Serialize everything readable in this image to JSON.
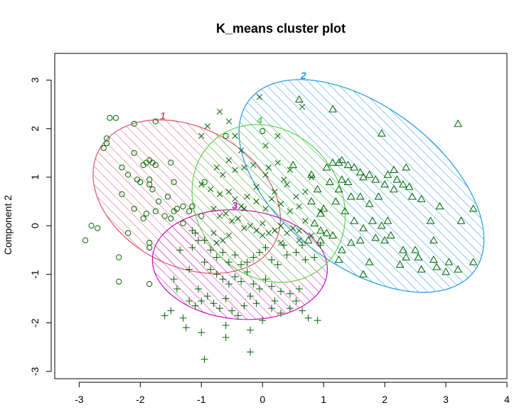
{
  "chart_data": {
    "type": "scatter",
    "title": "K_means cluster plot",
    "xlabel": "",
    "ylabel": "Component 2",
    "xlim": [
      -3.4,
      4.0
    ],
    "ylim": [
      -3.15,
      3.55
    ],
    "x_ticks": [
      -3,
      -2,
      -1,
      0,
      1,
      2,
      3,
      4
    ],
    "y_ticks": [
      -3,
      -2,
      -1,
      0,
      1,
      2,
      3
    ],
    "x_tick_labels": [
      "-3",
      "-2",
      "-1",
      "0",
      "1",
      "2",
      "3",
      "4"
    ],
    "y_tick_labels": [
      "-3",
      "-2",
      "-1",
      "0",
      "1",
      "2",
      "3"
    ],
    "point_color": "#006400",
    "clusters": [
      {
        "id": "1",
        "label": "1",
        "marker": "circle",
        "color": "#DF536B",
        "ellipse": {
          "cx": -1.24,
          "cy": 0.6,
          "rx": 1.77,
          "ry": 1.31,
          "angle_deg": -48
        },
        "points": [
          [
            -2.5,
            2.22
          ],
          [
            -2.4,
            2.22
          ],
          [
            -2.6,
            1.6
          ],
          [
            -2.55,
            1.7
          ],
          [
            -2.55,
            1.8
          ],
          [
            -2.1,
            2.1
          ],
          [
            -1.75,
            2.15
          ],
          [
            -2.2,
            1.05
          ],
          [
            -2.3,
            1.2
          ],
          [
            -2.1,
            1.5
          ],
          [
            -1.95,
            1.25
          ],
          [
            -1.9,
            1.3
          ],
          [
            -1.85,
            1.35
          ],
          [
            -1.8,
            1.3
          ],
          [
            -1.75,
            1.25
          ],
          [
            -1.5,
            1.3
          ],
          [
            -2.05,
            0.95
          ],
          [
            -2.0,
            0.9
          ],
          [
            -1.85,
            0.95
          ],
          [
            -1.85,
            0.85
          ],
          [
            -1.8,
            0.75
          ],
          [
            -1.55,
            0.6
          ],
          [
            -1.7,
            0.5
          ],
          [
            -1.45,
            0.9
          ],
          [
            -2.3,
            0.65
          ],
          [
            -2.1,
            0.35
          ],
          [
            -1.95,
            0.15
          ],
          [
            -1.9,
            0.25
          ],
          [
            -1.75,
            0.3
          ],
          [
            -1.6,
            0.2
          ],
          [
            -1.5,
            0.15
          ],
          [
            -1.45,
            0.3
          ],
          [
            -1.4,
            0.35
          ],
          [
            -1.3,
            0.4
          ],
          [
            -1.2,
            0.3
          ],
          [
            -1.15,
            0.4
          ],
          [
            -1.3,
            0.05
          ],
          [
            -2.8,
            0.0
          ],
          [
            -2.7,
            -0.05
          ],
          [
            -2.9,
            -0.3
          ],
          [
            -2.2,
            -0.15
          ],
          [
            -1.85,
            -0.35
          ],
          [
            -1.85,
            -0.45
          ],
          [
            -2.35,
            -0.65
          ],
          [
            -2.35,
            -1.15
          ],
          [
            -1.85,
            -1.2
          ],
          [
            -0.95,
            0.9
          ],
          [
            -0.6,
            1.85
          ],
          [
            0.0,
            1.95
          ],
          [
            -1.0,
            0.2
          ]
        ]
      },
      {
        "id": "2",
        "label": "2",
        "marker": "triangle",
        "color": "#2297E6",
        "ellipse": {
          "cx": 1.62,
          "cy": 0.82,
          "rx": 2.58,
          "ry": 1.47,
          "angle_deg": -50
        },
        "points": [
          [
            0.6,
            2.6
          ],
          [
            1.15,
            2.4
          ],
          [
            1.95,
            1.9
          ],
          [
            3.2,
            2.1
          ],
          [
            0.5,
            1.25
          ],
          [
            0.8,
            1.05
          ],
          [
            1.05,
            1.2
          ],
          [
            1.15,
            1.3
          ],
          [
            1.25,
            1.3
          ],
          [
            1.3,
            1.35
          ],
          [
            1.4,
            1.25
          ],
          [
            1.5,
            1.2
          ],
          [
            1.6,
            1.1
          ],
          [
            1.65,
            1.0
          ],
          [
            1.75,
            1.05
          ],
          [
            1.85,
            0.95
          ],
          [
            2.05,
            1.05
          ],
          [
            2.15,
            1.15
          ],
          [
            2.35,
            1.2
          ],
          [
            2.2,
            0.95
          ],
          [
            2.0,
            0.85
          ],
          [
            2.15,
            0.75
          ],
          [
            2.3,
            0.85
          ],
          [
            2.4,
            0.8
          ],
          [
            2.45,
            0.6
          ],
          [
            2.6,
            0.55
          ],
          [
            1.9,
            0.6
          ],
          [
            1.75,
            0.45
          ],
          [
            1.45,
            0.6
          ],
          [
            1.25,
            0.75
          ],
          [
            1.1,
            0.9
          ],
          [
            0.9,
            0.75
          ],
          [
            0.8,
            0.5
          ],
          [
            1.0,
            0.35
          ],
          [
            1.2,
            0.5
          ],
          [
            1.35,
            0.3
          ],
          [
            1.5,
            0.1
          ],
          [
            1.65,
            -0.05
          ],
          [
            1.8,
            0.1
          ],
          [
            1.95,
            0.0
          ],
          [
            2.05,
            0.1
          ],
          [
            2.1,
            -0.2
          ],
          [
            1.85,
            -0.25
          ],
          [
            1.6,
            -0.3
          ],
          [
            1.45,
            -0.35
          ],
          [
            1.3,
            -0.5
          ],
          [
            1.25,
            -0.7
          ],
          [
            1.75,
            -0.75
          ],
          [
            2.3,
            -0.5
          ],
          [
            2.35,
            -0.65
          ],
          [
            2.5,
            -0.5
          ],
          [
            2.75,
            0.1
          ],
          [
            2.8,
            -0.3
          ],
          [
            2.9,
            0.4
          ],
          [
            3.25,
            0.1
          ],
          [
            3.45,
            0.35
          ],
          [
            3.05,
            -0.75
          ],
          [
            2.8,
            -0.7
          ],
          [
            2.85,
            -0.85
          ],
          [
            3.0,
            -0.95
          ],
          [
            2.6,
            -0.9
          ],
          [
            3.2,
            -0.9
          ],
          [
            3.45,
            -0.75
          ],
          [
            2.25,
            -0.8
          ],
          [
            1.65,
            -1.0
          ],
          [
            0.95,
            -0.1
          ],
          [
            1.05,
            -0.15
          ],
          [
            1.15,
            -0.2
          ],
          [
            0.85,
            0.05
          ],
          [
            2.0,
            -0.3
          ],
          [
            2.55,
            -0.65
          ],
          [
            0.95,
            0.25
          ],
          [
            1.4,
            0.9
          ],
          [
            1.6,
            0.6
          ],
          [
            1.3,
            0.95
          ],
          [
            0.75,
            -0.3
          ],
          [
            0.95,
            -0.3
          ]
        ]
      },
      {
        "id": "3",
        "label": "3",
        "marker": "plus",
        "color": "#CD0BBC",
        "ellipse": {
          "cx": -0.37,
          "cy": -0.8,
          "rx": 1.44,
          "ry": 1.12,
          "angle_deg": -10
        },
        "points": [
          [
            -1.15,
            -0.1
          ],
          [
            -1.1,
            -0.15
          ],
          [
            -1.05,
            -0.3
          ],
          [
            -1.15,
            -0.45
          ],
          [
            -0.85,
            -0.5
          ],
          [
            -0.75,
            -0.65
          ],
          [
            -0.65,
            -0.55
          ],
          [
            -0.55,
            -0.75
          ],
          [
            -0.45,
            -0.6
          ],
          [
            -0.35,
            -0.8
          ],
          [
            -0.25,
            -0.75
          ],
          [
            -0.15,
            -0.65
          ],
          [
            -0.05,
            -0.55
          ],
          [
            0.05,
            -0.45
          ],
          [
            0.15,
            -0.7
          ],
          [
            0.25,
            -0.8
          ],
          [
            0.4,
            -0.6
          ],
          [
            0.55,
            -0.55
          ],
          [
            0.7,
            -0.7
          ],
          [
            0.85,
            -0.65
          ],
          [
            0.95,
            -0.4
          ],
          [
            -0.95,
            -0.75
          ],
          [
            -0.85,
            -0.9
          ],
          [
            -0.75,
            -1.0
          ],
          [
            -0.65,
            -1.1
          ],
          [
            -0.55,
            -1.2
          ],
          [
            -0.45,
            -1.05
          ],
          [
            -0.35,
            -1.15
          ],
          [
            -0.25,
            -0.95
          ],
          [
            -0.15,
            -1.2
          ],
          [
            -0.05,
            -1.3
          ],
          [
            0.05,
            -1.1
          ],
          [
            0.15,
            -1.25
          ],
          [
            0.3,
            -1.35
          ],
          [
            0.45,
            -1.4
          ],
          [
            0.6,
            -1.3
          ],
          [
            -1.05,
            -1.3
          ],
          [
            -1.0,
            -1.55
          ],
          [
            -0.9,
            -1.45
          ],
          [
            -0.8,
            -1.6
          ],
          [
            -0.7,
            -1.7
          ],
          [
            -0.6,
            -1.5
          ],
          [
            -0.5,
            -1.75
          ],
          [
            -0.4,
            -1.85
          ],
          [
            -0.3,
            -1.65
          ],
          [
            -0.2,
            -1.45
          ],
          [
            -0.1,
            -1.6
          ],
          [
            0.0,
            -1.95
          ],
          [
            0.15,
            -1.7
          ],
          [
            0.3,
            -1.8
          ],
          [
            0.45,
            -1.7
          ],
          [
            0.65,
            -1.75
          ],
          [
            0.75,
            -1.9
          ],
          [
            -1.2,
            -1.55
          ],
          [
            -1.1,
            -1.65
          ],
          [
            -1.3,
            -1.9
          ],
          [
            -1.5,
            -1.75
          ],
          [
            -1.6,
            -1.85
          ],
          [
            -1.25,
            -2.1
          ],
          [
            -1.0,
            -2.2
          ],
          [
            -0.6,
            -2.05
          ],
          [
            -0.2,
            -2.15
          ],
          [
            -0.95,
            -2.75
          ],
          [
            -0.6,
            -2.3
          ],
          [
            -0.2,
            -2.6
          ],
          [
            -1.4,
            -1.3
          ],
          [
            -1.45,
            -1.1
          ],
          [
            -1.2,
            -0.9
          ],
          [
            -1.35,
            -0.5
          ],
          [
            -0.95,
            -0.3
          ],
          [
            0.35,
            -0.4
          ],
          [
            0.65,
            -0.4
          ],
          [
            0.2,
            -1.55
          ],
          [
            0.55,
            -1.55
          ],
          [
            0.9,
            -1.95
          ]
        ]
      },
      {
        "id": "4",
        "label": "4",
        "marker": "cross",
        "color": "#61D04F",
        "ellipse": {
          "cx": 0.1,
          "cy": 0.46,
          "rx": 1.65,
          "ry": 1.22,
          "angle_deg": -75
        },
        "points": [
          [
            -0.7,
            2.35
          ],
          [
            -0.55,
            2.15
          ],
          [
            -0.9,
            2.05
          ],
          [
            -1.0,
            1.85
          ],
          [
            -0.45,
            1.85
          ],
          [
            0.25,
            1.85
          ],
          [
            0.05,
            1.65
          ],
          [
            -0.35,
            1.55
          ],
          [
            -0.55,
            1.35
          ],
          [
            -0.75,
            1.2
          ],
          [
            -0.65,
            1.05
          ],
          [
            -0.45,
            1.15
          ],
          [
            -0.3,
            1.2
          ],
          [
            -0.15,
            1.25
          ],
          [
            0.05,
            1.05
          ],
          [
            0.1,
            1.2
          ],
          [
            0.25,
            1.3
          ],
          [
            0.45,
            1.15
          ],
          [
            -1.0,
            0.85
          ],
          [
            -0.85,
            0.75
          ],
          [
            -0.7,
            0.65
          ],
          [
            -0.55,
            0.7
          ],
          [
            -0.45,
            0.55
          ],
          [
            -0.35,
            0.4
          ],
          [
            -0.25,
            0.6
          ],
          [
            -0.1,
            0.5
          ],
          [
            0.05,
            0.35
          ],
          [
            0.15,
            0.55
          ],
          [
            0.3,
            0.45
          ],
          [
            0.45,
            0.3
          ],
          [
            0.55,
            0.6
          ],
          [
            0.7,
            0.7
          ],
          [
            -0.8,
            0.35
          ],
          [
            -0.7,
            0.2
          ],
          [
            -0.6,
            0.25
          ],
          [
            -0.5,
            0.1
          ],
          [
            -0.4,
            0.15
          ],
          [
            -0.3,
            -0.05
          ],
          [
            -0.2,
            0.0
          ],
          [
            -0.1,
            -0.1
          ],
          [
            0.0,
            0.05
          ],
          [
            0.1,
            -0.15
          ],
          [
            0.2,
            -0.1
          ],
          [
            0.3,
            0.0
          ],
          [
            0.4,
            -0.15
          ],
          [
            0.5,
            -0.05
          ],
          [
            0.6,
            -0.1
          ],
          [
            0.7,
            0.1
          ],
          [
            0.8,
            -0.2
          ],
          [
            -0.8,
            -0.15
          ],
          [
            -0.65,
            -0.3
          ],
          [
            -0.55,
            -0.2
          ],
          [
            -0.75,
            -0.35
          ],
          [
            0.0,
            -0.2
          ],
          [
            0.3,
            -0.35
          ],
          [
            0.6,
            -0.3
          ],
          [
            -0.3,
            0.35
          ],
          [
            0.2,
            0.7
          ],
          [
            -0.1,
            0.8
          ],
          [
            0.4,
            0.85
          ],
          [
            0.6,
            0.4
          ],
          [
            0.95,
            0.3
          ],
          [
            -0.05,
            2.65
          ],
          [
            0.65,
            2.45
          ],
          [
            0.8,
            1.0
          ],
          [
            0.35,
            0.95
          ]
        ]
      }
    ]
  }
}
